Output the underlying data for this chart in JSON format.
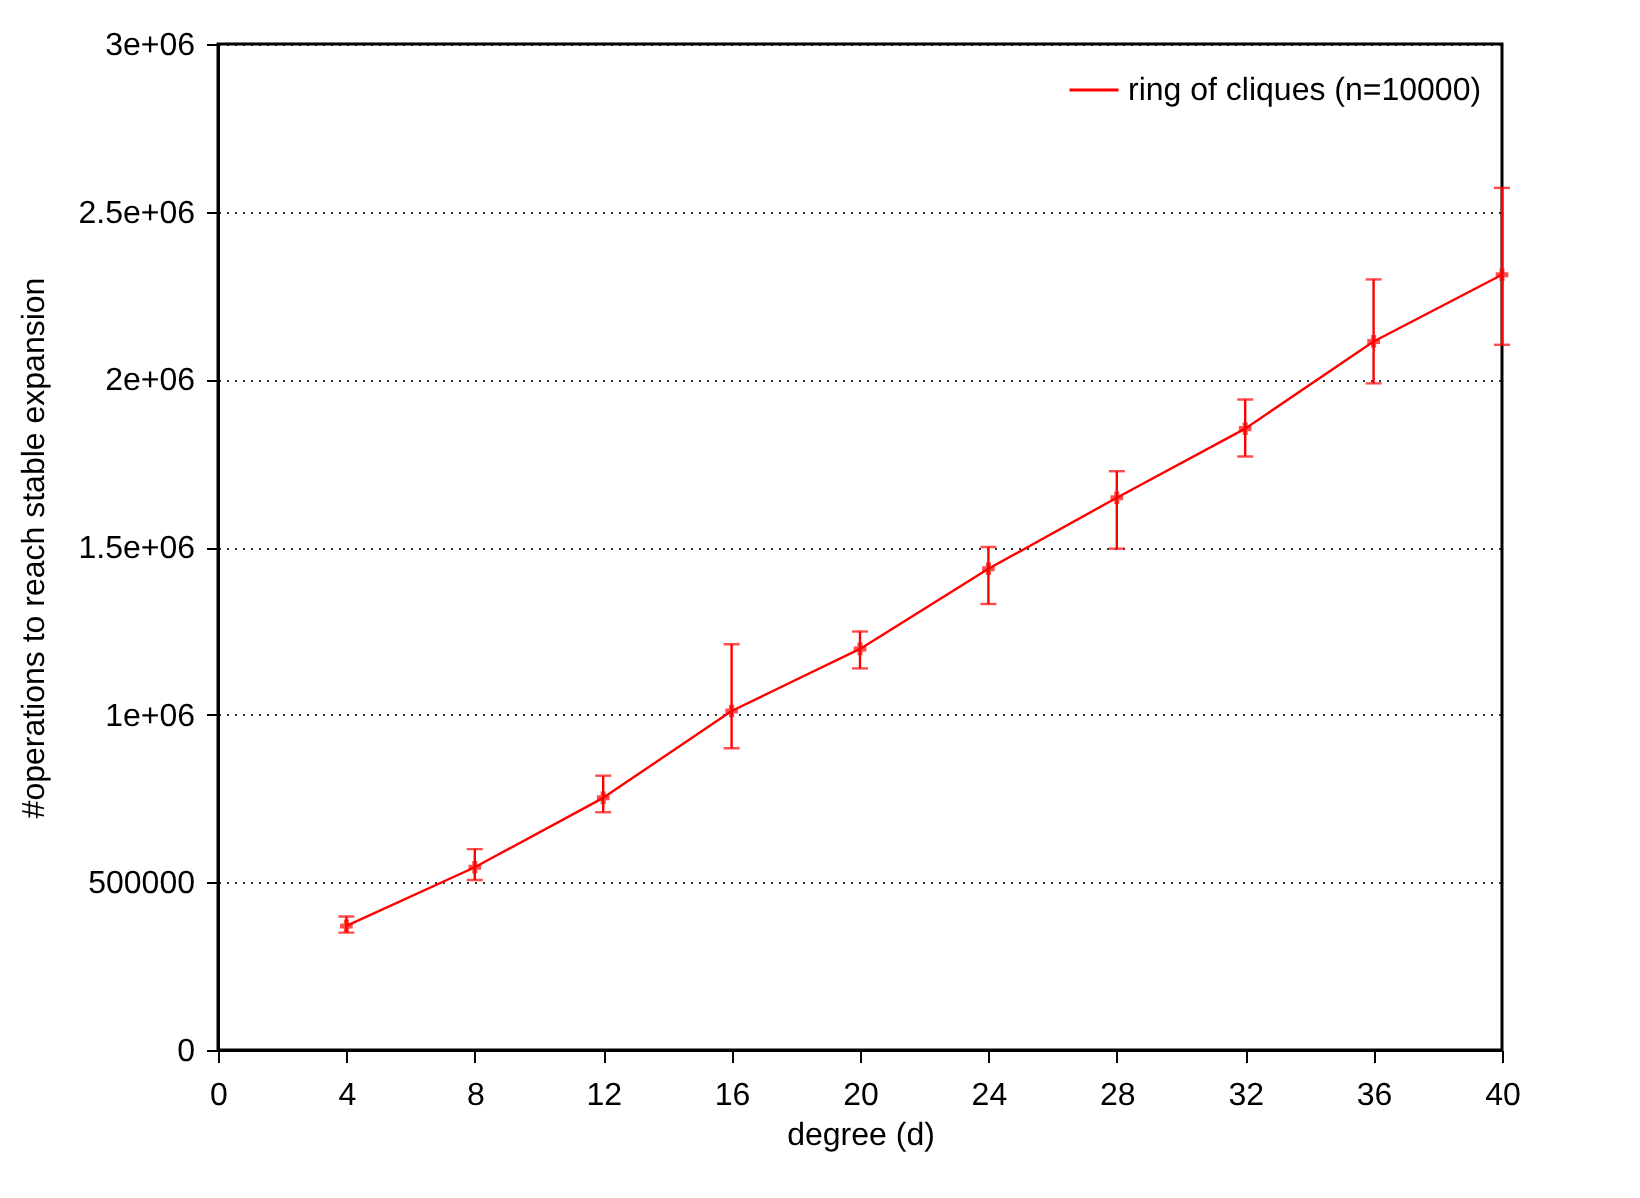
{
  "chart_data": {
    "type": "line",
    "xlabel": "degree (d)",
    "ylabel": "#operations to reach stable expansion",
    "x": [
      4,
      8,
      12,
      16,
      20,
      24,
      28,
      32,
      36,
      40
    ],
    "series": [
      {
        "name": "ring of cliques (n=10000)",
        "color": "#ff0000",
        "values": [
          370000,
          545000,
          752000,
          1011000,
          1196000,
          1435000,
          1647000,
          1853000,
          2113000,
          2312000
        ],
        "errors": [
          [
            350000,
            398000
          ],
          [
            507000,
            599000
          ],
          [
            709000,
            818000
          ],
          [
            900000,
            1210000
          ],
          [
            1138000,
            1248000
          ],
          [
            1330000,
            1500000
          ],
          [
            1495000,
            1726000
          ],
          [
            1770000,
            1940000
          ],
          [
            1988000,
            2298000
          ],
          [
            2103000,
            2571000
          ]
        ]
      }
    ],
    "xlim": [
      0,
      40
    ],
    "xticks": [
      0,
      4,
      8,
      12,
      16,
      20,
      24,
      28,
      32,
      36,
      40
    ],
    "ylim": [
      0,
      3000000
    ],
    "yticks": [
      0,
      500000,
      {
        "value": 1000000,
        "label": "1e+06"
      },
      {
        "value": 1500000,
        "label": "1.5e+06"
      },
      {
        "value": 2000000,
        "label": "2e+06"
      },
      {
        "value": 2500000,
        "label": "2.5e+06"
      },
      {
        "value": 3000000,
        "label": "3e+06"
      }
    ],
    "grid": "y",
    "legend": "top right",
    "marker": "cross",
    "line_style": "solid"
  }
}
